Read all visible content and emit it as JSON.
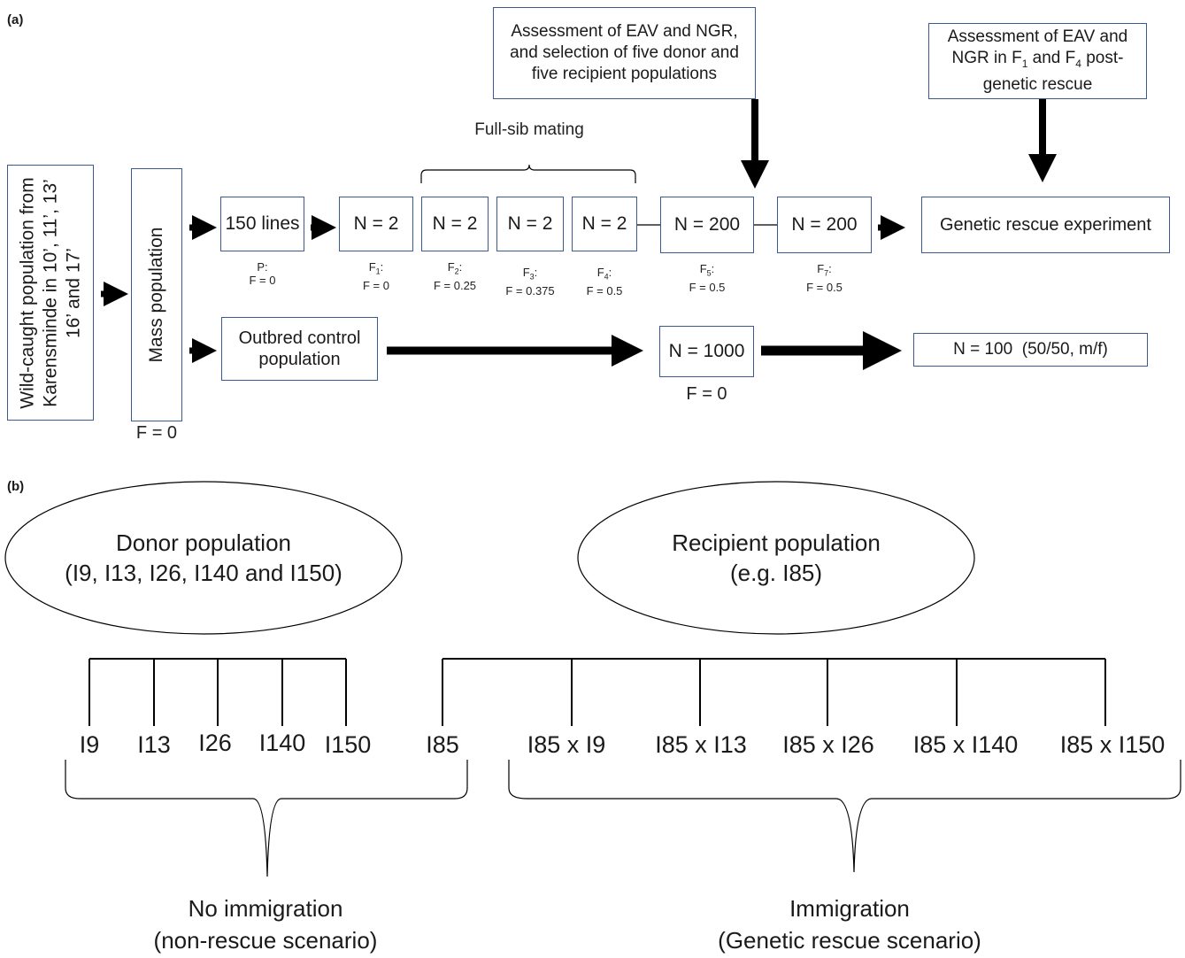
{
  "panel_a": {
    "label": "(a)",
    "wild_caught": "Wild-caught population from Karensminde in 10’, 11’, 13’ 16’ and 17’",
    "mass_population": "Mass population",
    "mass_F": "F = 0",
    "lines_box": "150 lines",
    "lines_gen": "P:",
    "lines_F": "F = 0",
    "full_sib_label": "Full-sib mating",
    "n2": "N = 2",
    "f1_gen": "F",
    "f1_sub": "1",
    "f1_F": "F = 0",
    "f2_gen": "F",
    "f2_sub": "2",
    "f2_F": "F = 0.25",
    "f3_gen": "F",
    "f3_sub": "3",
    "f3_F": "F = 0.375",
    "f4_gen": "F",
    "f4_sub": "4",
    "f4_F": "F = 0.5",
    "n200": "N = 200",
    "f5_gen": "F",
    "f5_sub": "5",
    "f5_F": "F = 0.5",
    "f7_gen": "F",
    "f7_sub": "7",
    "f7_F": "F = 0.5",
    "assessment1": "Assessment of EAV and NGR, and selection of five donor and five recipient populations",
    "assessment2_pre": "Assessment of EAV and NGR in F",
    "assessment2_sub1": "1",
    "assessment2_mid": " and F",
    "assessment2_sub4": "4",
    "assessment2_post": " post-genetic rescue",
    "genetic_rescue": "Genetic rescue experiment",
    "outbred": "Outbred control population",
    "n1000": "N = 1000",
    "n1000_F": "F = 0",
    "n100": "N = 100  (50/50, m/f)"
  },
  "panel_b": {
    "label": "(b)",
    "donor_title": "Donor population",
    "donor_sub": "(I9, I13, I26, I140 and I150)",
    "recipient_title": "Recipient population",
    "recipient_sub": "(e.g. I85)",
    "donor_leaves": [
      "I9",
      "I13",
      "I26",
      "I140",
      "I150"
    ],
    "recipient_leaves": [
      "I85",
      "I85 x I9",
      "I85 x I13",
      "I85 x I26",
      "I85 x I140",
      "I85 x I150"
    ],
    "no_immigration": "No immigration",
    "no_immigration_sub": "(non-rescue scenario)",
    "immigration": "Immigration",
    "immigration_sub": "(Genetic rescue scenario)"
  }
}
